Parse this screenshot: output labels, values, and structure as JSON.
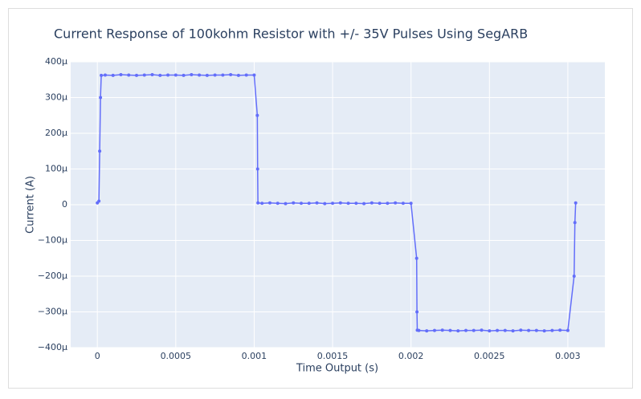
{
  "chart_data": {
    "type": "line",
    "title": "Current Response of 100kohm Resistor with +/- 35V Pulses Using SegARB",
    "x_label": "Time Output (s)",
    "y_label": "Current (A)",
    "x": [
      0,
      1e-05,
      1.5e-05,
      2e-05,
      2.5e-05,
      5e-05,
      0.0001,
      0.00015,
      0.0002,
      0.00025,
      0.0003,
      0.00035,
      0.0004,
      0.00045,
      0.0005,
      0.00055,
      0.0006,
      0.00065,
      0.0007,
      0.00075,
      0.0008,
      0.00085,
      0.0009,
      0.00095,
      0.001,
      0.00102,
      0.001022,
      0.001024,
      0.00105,
      0.0011,
      0.00115,
      0.0012,
      0.00125,
      0.0013,
      0.00135,
      0.0014,
      0.00145,
      0.0015,
      0.00155,
      0.0016,
      0.00165,
      0.0017,
      0.00175,
      0.0018,
      0.00185,
      0.0019,
      0.00195,
      0.002,
      0.002036,
      0.002038,
      0.00204,
      0.00205,
      0.0021,
      0.00215,
      0.0022,
      0.00225,
      0.0023,
      0.00235,
      0.0024,
      0.00245,
      0.0025,
      0.00255,
      0.0026,
      0.00265,
      0.0027,
      0.00275,
      0.0028,
      0.00285,
      0.0029,
      0.00295,
      0.003,
      0.00304,
      0.003045,
      0.00305
    ],
    "series": [
      {
        "color": "#636efa",
        "values": [
          5e-06,
          1e-05,
          0.00015,
          0.0003,
          0.000362,
          0.000363,
          0.000362,
          0.000364,
          0.000363,
          0.000362,
          0.000363,
          0.000364,
          0.000362,
          0.000363,
          0.000363,
          0.000362,
          0.000364,
          0.000363,
          0.000362,
          0.000363,
          0.000363,
          0.000364,
          0.000362,
          0.000363,
          0.000363,
          0.00025,
          0.0001,
          5e-06,
          4e-06,
          5e-06,
          4e-06,
          3e-06,
          5e-06,
          4e-06,
          4e-06,
          5e-06,
          3e-06,
          4e-06,
          5e-06,
          4e-06,
          4e-06,
          3e-06,
          5e-06,
          4e-06,
          4e-06,
          5e-06,
          4e-06,
          4e-06,
          -0.00015,
          -0.0003,
          -0.000351,
          -0.000352,
          -0.000353,
          -0.000352,
          -0.000351,
          -0.000352,
          -0.000353,
          -0.000352,
          -0.000352,
          -0.000351,
          -0.000353,
          -0.000352,
          -0.000352,
          -0.000353,
          -0.000351,
          -0.000352,
          -0.000352,
          -0.000353,
          -0.000352,
          -0.000351,
          -0.000352,
          -0.0002,
          -5e-05,
          5e-06
        ]
      }
    ],
    "xlim": [
      -0.00017,
      0.003236
    ],
    "xticks": [
      0,
      0.0005,
      0.001,
      0.0015,
      0.002,
      0.0025,
      0.003
    ],
    "ylim": [
      -0.0004,
      0.0004
    ],
    "yticks": [
      {
        "value": -0.0004,
        "label": "−400μ"
      },
      {
        "value": -0.0003,
        "label": "−300μ"
      },
      {
        "value": -0.0002,
        "label": "−200μ"
      },
      {
        "value": -0.0001,
        "label": "−100μ"
      },
      0,
      {
        "value": 0.0001,
        "label": "100μ"
      },
      {
        "value": 0.0002,
        "label": "200μ"
      },
      {
        "value": 0.0003,
        "label": "300μ"
      },
      {
        "value": 0.0004,
        "label": "400μ"
      }
    ],
    "grid": true
  }
}
